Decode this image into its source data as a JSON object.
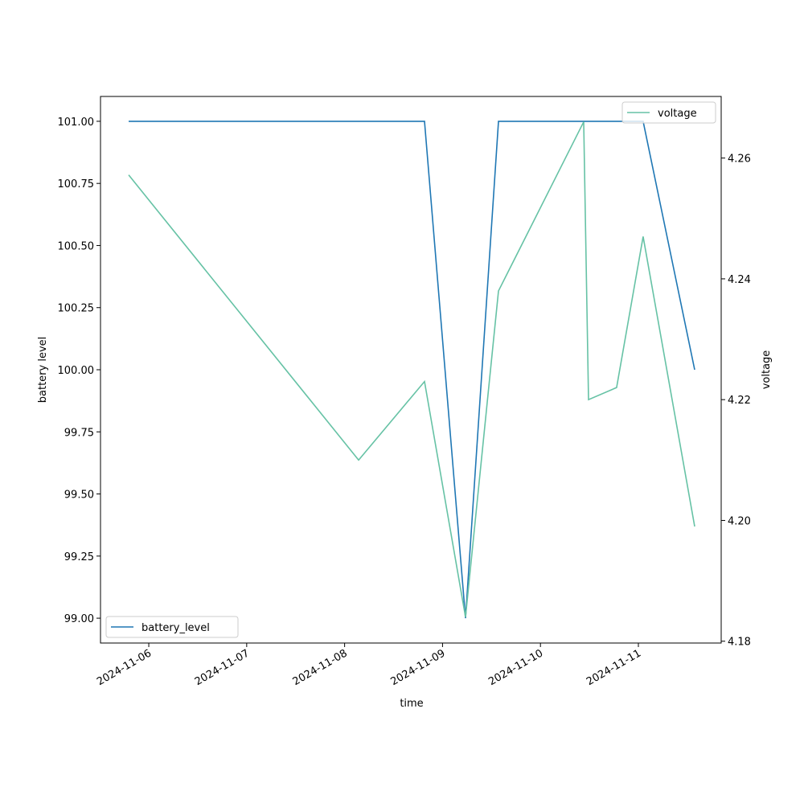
{
  "chart_data": {
    "type": "line",
    "x_label": "time",
    "y_label": "battery level",
    "y2_label": "voltage",
    "x": [
      "2024-11-05T19:04",
      "2024-11-08T03:26",
      "2024-11-08T19:35",
      "2024-11-09T05:38",
      "2024-11-09T13:43",
      "2024-11-10T10:36",
      "2024-11-10T11:47",
      "2024-11-10T18:40",
      "2024-11-11T01:10",
      "2024-11-11T13:48"
    ],
    "series": [
      {
        "name": "battery_level",
        "color": "#1f77b4",
        "axis": "y",
        "values": [
          101,
          101,
          101,
          99,
          101,
          101,
          101,
          101,
          101,
          100
        ]
      },
      {
        "name": "voltage",
        "color": "#66c2a5",
        "axis": "y2",
        "values": [
          4.2572,
          4.21,
          4.223,
          4.184,
          4.238,
          4.266,
          4.22,
          4.222,
          4.247,
          4.199
        ]
      }
    ],
    "xlim": [
      "2024-11-05T12:10",
      "2024-11-11T20:18"
    ],
    "xticks": [
      "2024-11-06",
      "2024-11-07",
      "2024-11-08",
      "2024-11-09",
      "2024-11-10",
      "2024-11-11"
    ],
    "ylim": [
      98.9,
      101.1
    ],
    "yticks": [
      {
        "value": 99,
        "label": "99.00"
      },
      {
        "value": 99.25,
        "label": "99.25"
      },
      {
        "value": 99.5,
        "label": "99.50"
      },
      {
        "value": 99.75,
        "label": "99.75"
      },
      {
        "value": 100,
        "label": "100.00"
      },
      {
        "value": 100.25,
        "label": "100.25"
      },
      {
        "value": 100.5,
        "label": "100.50"
      },
      {
        "value": 100.75,
        "label": "100.75"
      },
      {
        "value": 101,
        "label": "101.00"
      }
    ],
    "y2lim": [
      4.1797,
      4.2702
    ],
    "y2ticks": [
      4.18,
      {
        "value": 4.2,
        "label": "4.20"
      },
      4.22,
      4.24,
      4.26
    ],
    "legend": {
      "y": "lower left",
      "y2": "upper right"
    }
  }
}
